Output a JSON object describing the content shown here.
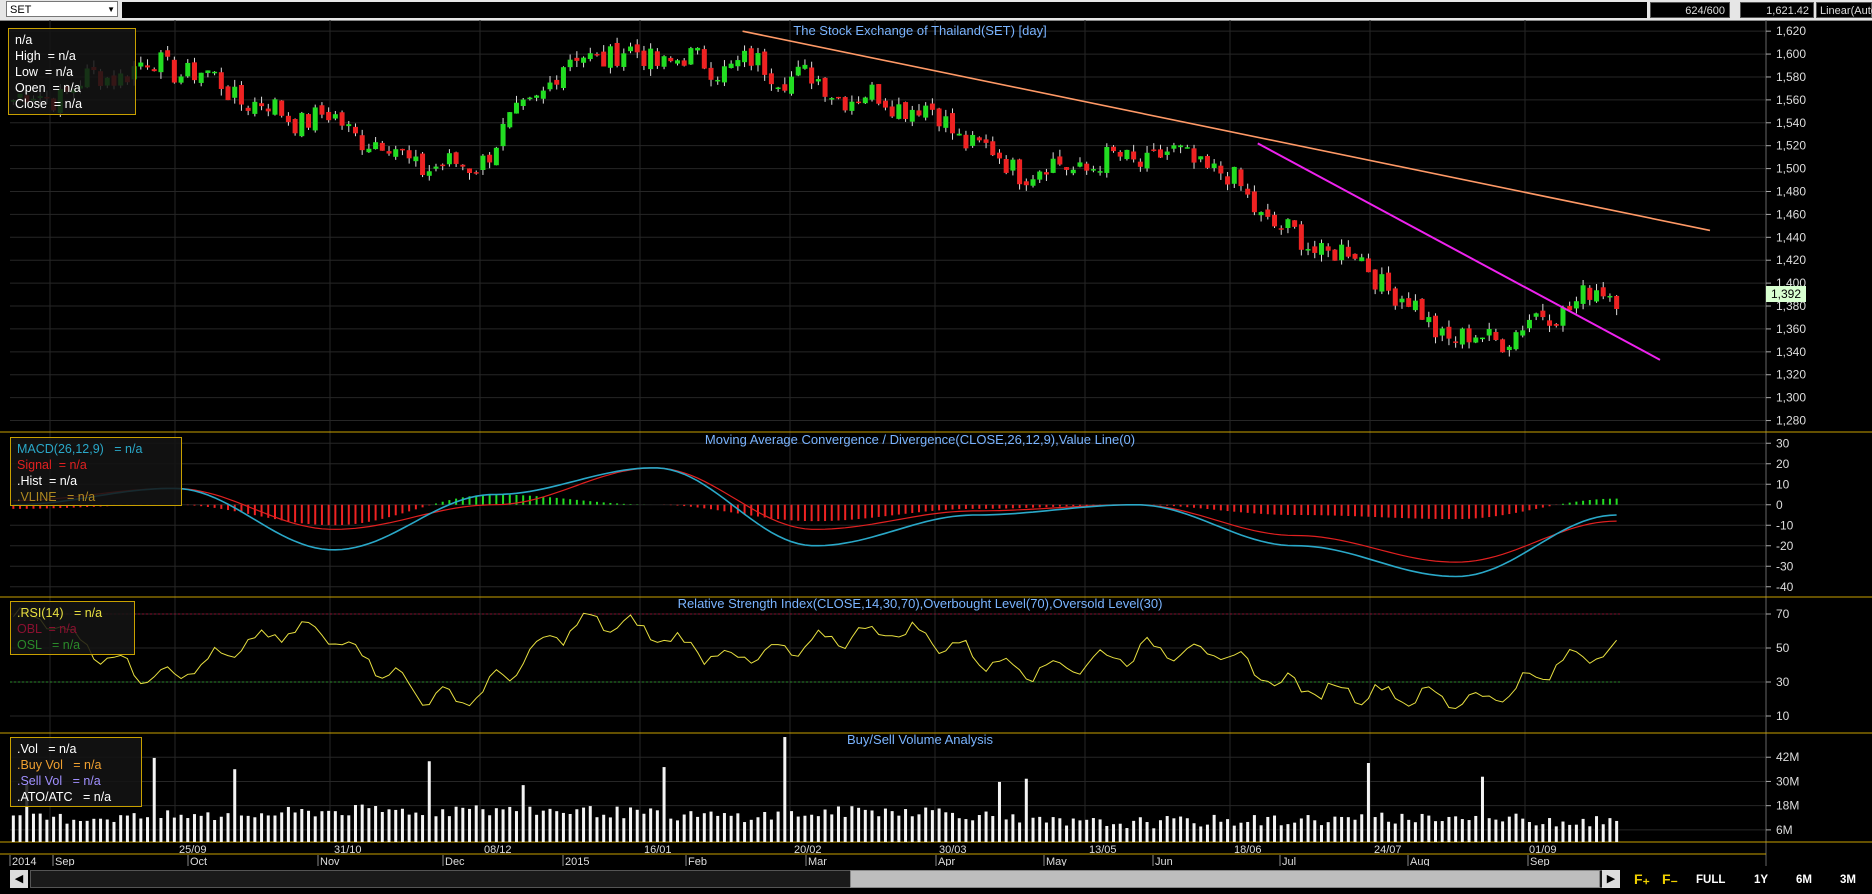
{
  "toolbar": {
    "symbol": "SET",
    "count": "624/600",
    "last_price": "1,621.42",
    "scale_mode": "Linear(Auto"
  },
  "main_panel": {
    "title": "The Stock Exchange of Thailand(SET) [day]",
    "legend": {
      "l1": "n/a",
      "l2": "High  = n/a",
      "l3": "Low  = n/a",
      "l4": "Open  = n/a",
      "l5": "Close  = n/a"
    },
    "price_tag": "1,392",
    "y_ticks": [
      "1,620",
      "1,600",
      "1,580",
      "1,560",
      "1,540",
      "1,520",
      "1,500",
      "1,480",
      "1,460",
      "1,440",
      "1,420",
      "1,400",
      "1,380",
      "1,360",
      "1,340",
      "1,320",
      "1,300",
      "1,280"
    ]
  },
  "macd_panel": {
    "title": "Moving Average Convergence / Divergence(CLOSE,26,12,9),Value Line(0)",
    "legend": {
      "l1": "MACD(26,12,9)   = n/a",
      "l2": "Signal  = n/a",
      "l3": ".Hist  = n/a",
      "l4": ".VLINE   = n/a"
    },
    "y_ticks": [
      "30",
      "20",
      "10",
      "0",
      "-10",
      "-20",
      "-30",
      "-40"
    ]
  },
  "rsi_panel": {
    "title": "Relative Strength Index(CLOSE,14,30,70),Overbought Level(70),Oversold Level(30)",
    "legend": {
      "l1": ".RSI(14)   = n/a",
      "l2": "OBL  = n/a",
      "l3": "OSL   = n/a"
    },
    "y_ticks": [
      "70",
      "50",
      "30",
      "10"
    ]
  },
  "volume_panel": {
    "title": "Buy/Sell Volume Analysis",
    "legend": {
      "l1": ".Vol   = n/a",
      "l2": ".Buy Vol   = n/a",
      "l3": ".Sell Vol   = n/a",
      "l4": ".ATO/ATC   = n/a"
    },
    "y_ticks": [
      "42M",
      "30M",
      "18M",
      "6M"
    ]
  },
  "x_axis": {
    "upper": [
      "25/09",
      "31/10",
      "08/12",
      "16/01",
      "20/02",
      "30/03",
      "13/05",
      "18/06",
      "24/07",
      "01/09"
    ],
    "lower": [
      "2014",
      "Sep",
      "Oct",
      "Nov",
      "Dec",
      "2015",
      "Feb",
      "Mar",
      "Apr",
      "May",
      "Jun",
      "Jul",
      "Aug",
      "Sep"
    ]
  },
  "zoom_buttons": [
    "FULL",
    "1Y",
    "6M",
    "3M"
  ],
  "colors": {
    "up": "#22dd22",
    "down": "#ee2222",
    "macd": "#2aa8c8",
    "signal": "#e02020",
    "rsi": "#e8e040",
    "trend1": "#ff9966",
    "trend2": "#ee22ee",
    "panel_border": "#c8a000",
    "title": "#7ab4ff"
  },
  "chart_data": [
    {
      "type": "line",
      "title": "The Stock Exchange of Thailand(SET) [day]",
      "x": [
        "2014-09",
        "25/09",
        "31/10",
        "08/12",
        "16/01",
        "20/02",
        "30/03",
        "13/05",
        "18/06",
        "24/07",
        "01/09",
        "2015-09-late"
      ],
      "series": [
        {
          "name": "Close",
          "values": [
            1560,
            1590,
            1545,
            1500,
            1600,
            1590,
            1560,
            1500,
            1510,
            1430,
            1350,
            1392
          ]
        }
      ],
      "ylim": [
        1280,
        1620
      ],
      "annotations": [
        "trendline from 1,620 (Feb) to 1,450",
        "trendline from 1,520 (Jun) to 1,340"
      ]
    },
    {
      "type": "line",
      "title": "Moving Average Convergence / Divergence(CLOSE,26,12,9),Value Line(0)",
      "x": [
        "25/09",
        "31/10",
        "08/12",
        "16/01",
        "20/02",
        "30/03",
        "13/05",
        "18/06",
        "24/07",
        "01/09",
        "end"
      ],
      "series": [
        {
          "name": "MACD(26,12,9)",
          "values": [
            0,
            8,
            -22,
            5,
            18,
            -20,
            -5,
            0,
            -20,
            -35,
            -5
          ]
        },
        {
          "name": "Signal",
          "values": [
            2,
            8,
            -12,
            0,
            18,
            -12,
            -3,
            0,
            -15,
            -28,
            -8
          ]
        }
      ],
      "ylim": [
        -40,
        30
      ]
    },
    {
      "type": "line",
      "title": "Relative Strength Index(CLOSE,14,30,70),Overbought Level(70),Oversold Level(30)",
      "x": [
        "2014-09",
        "25/09",
        "31/10",
        "08/12",
        "16/01",
        "20/02",
        "30/03",
        "13/05",
        "18/06",
        "24/07",
        "01/09",
        "end"
      ],
      "series": [
        {
          "name": "RSI(14)",
          "values": [
            70,
            35,
            60,
            20,
            65,
            45,
            60,
            38,
            50,
            25,
            20,
            50
          ]
        }
      ],
      "ylim": [
        0,
        80
      ]
    },
    {
      "type": "bar",
      "title": "Buy/Sell Volume Analysis",
      "categories": [
        "25/09",
        "31/10",
        "08/12",
        "16/01",
        "20/02",
        "30/03",
        "13/05",
        "18/06",
        "24/07",
        "01/09"
      ],
      "series": [
        {
          "name": "Vol",
          "values": [
            12,
            14,
            24,
            18,
            14,
            52,
            9,
            11,
            13,
            10
          ]
        }
      ],
      "ylim": [
        0,
        54
      ]
    }
  ]
}
